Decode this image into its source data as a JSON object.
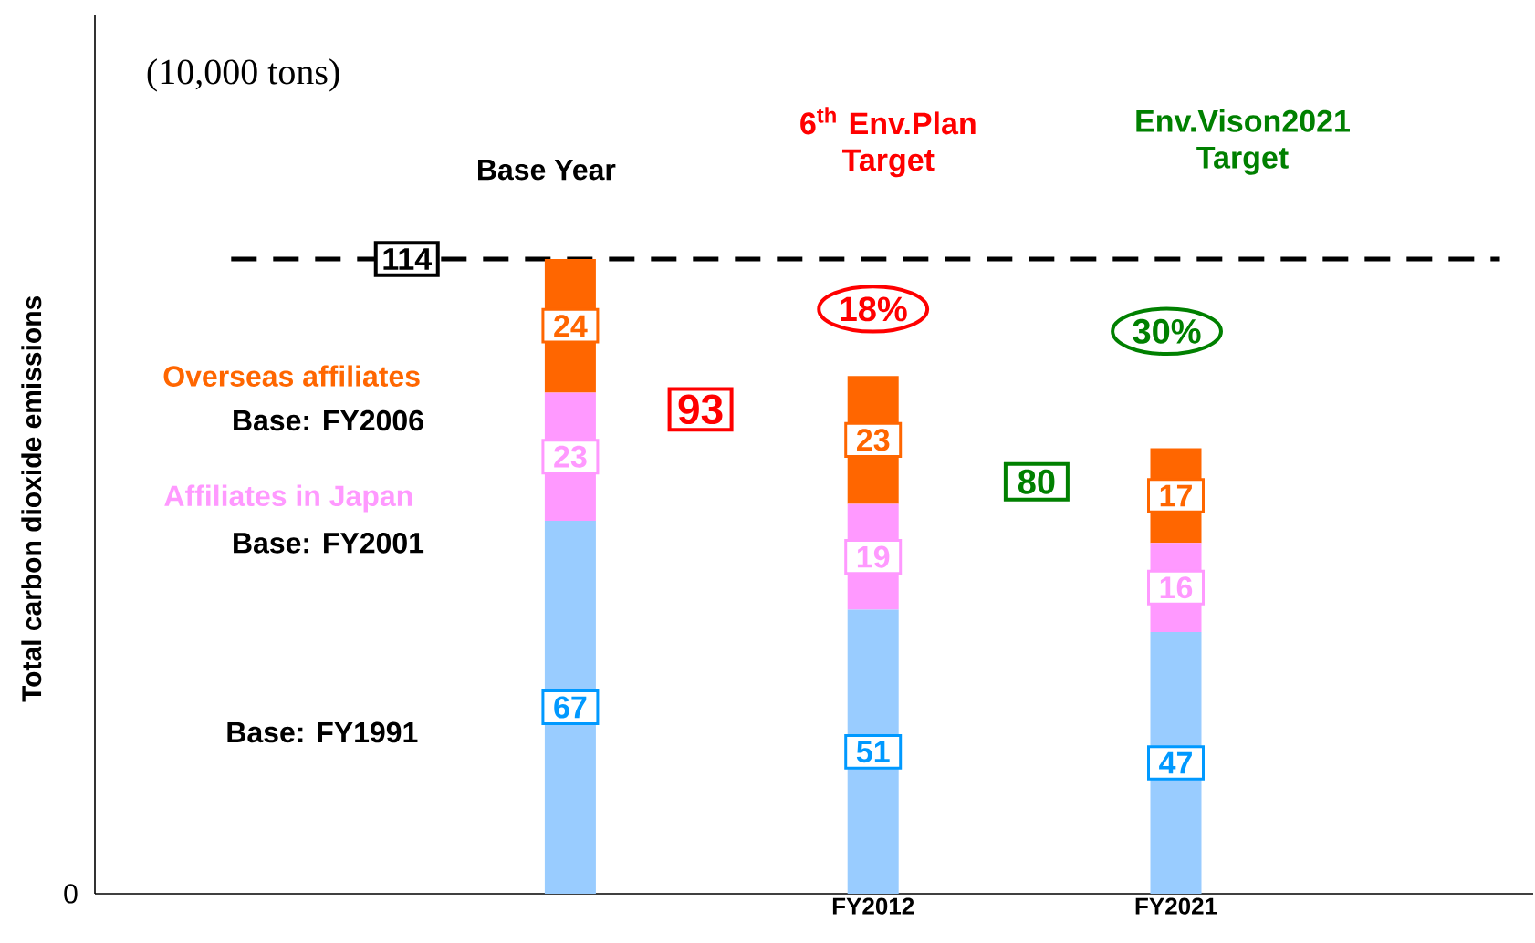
{
  "chart_data": {
    "type": "bar",
    "stacked": true,
    "data_labels": true,
    "categories": [
      null,
      "FY2012",
      "FY2021"
    ],
    "series": [
      {
        "color": "#99ccff",
        "values": [
          67,
          51,
          47
        ]
      },
      {
        "name": "Affiliates in Japan",
        "color": "#ff99ff",
        "values": [
          23,
          19,
          16
        ]
      },
      {
        "name": "Overseas affiliates",
        "color": "#ff6600",
        "values": [
          24,
          23,
          17
        ]
      }
    ],
    "totals": [
      null,
      "93",
      "80"
    ],
    "ref_lines": [
      {
        "axis": "y",
        "value": 114,
        "label": "114",
        "color": "#000000",
        "line_style": "dashed"
      }
    ],
    "annotations": [
      "(10,000 tons)",
      "Base Year",
      "6$^{th}$ Env.Plan Target",
      "Env.Vison2021 Target",
      "18%",
      "30%",
      "Base: FY2006",
      "Base: FY2001",
      "Base: FY1991",
      "0",
      "Total carbon dioxide emissions"
    ]
  }
}
